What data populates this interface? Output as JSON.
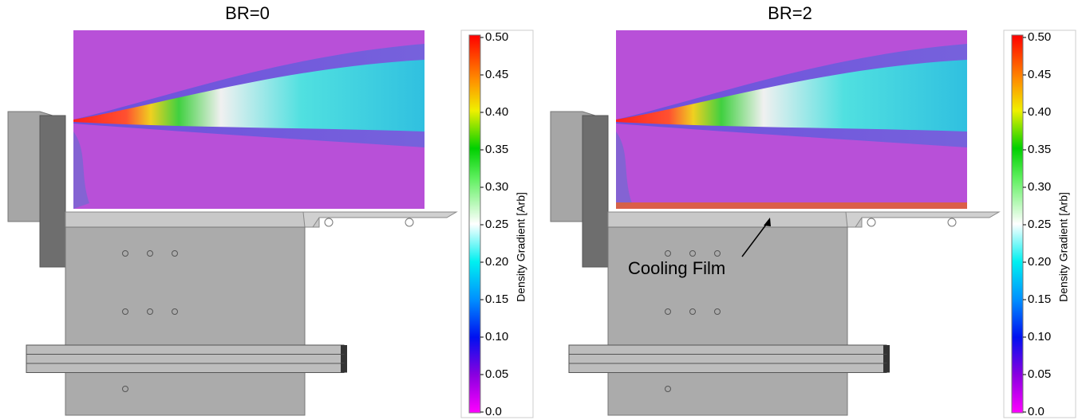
{
  "panels": [
    {
      "title": "BR=0",
      "colorbar": {
        "label": "Density Gradient [Arb]",
        "ticks": [
          "0.50",
          "0.45",
          "0.40",
          "0.35",
          "0.30",
          "0.25",
          "0.20",
          "0.15",
          "0.10",
          "0.05",
          "0.0"
        ]
      }
    },
    {
      "title": "BR=2",
      "colorbar": {
        "label": "Density Gradient [Arb]",
        "ticks": [
          "0.50",
          "0.45",
          "0.40",
          "0.35",
          "0.30",
          "0.25",
          "0.20",
          "0.15",
          "0.10",
          "0.05",
          "0.0"
        ]
      },
      "annotation": "Cooling Film"
    }
  ]
}
